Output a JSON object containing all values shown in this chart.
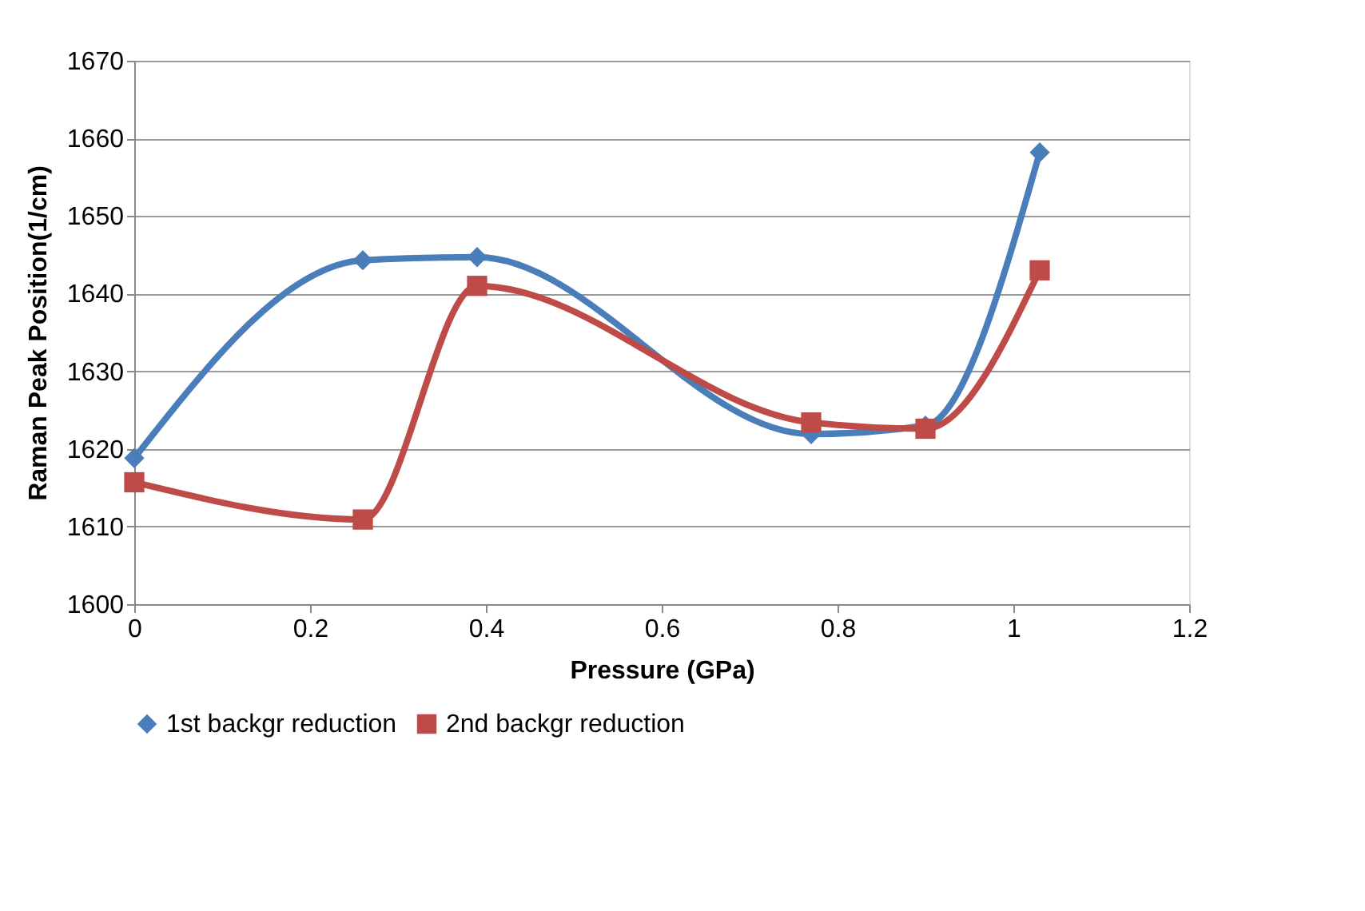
{
  "chart_data": {
    "type": "line",
    "xlabel": "Pressure (GPa)",
    "ylabel": "Raman Peak Position(1/cm)",
    "x": [
      0,
      0.26,
      0.39,
      0.77,
      0.9,
      1.03
    ],
    "series": [
      {
        "name": "1st backgr reduction",
        "color": "#4a7ebb",
        "marker": "diamond",
        "values": [
          1618.8,
          1644.3,
          1644.7,
          1621.9,
          1623,
          1658.2
        ]
      },
      {
        "name": "2nd backgr reduction",
        "color": "#be4b48",
        "marker": "square",
        "values": [
          1615.7,
          1610.9,
          1641.0,
          1623.4,
          1622.6,
          1643
        ]
      }
    ],
    "xlim": [
      0,
      1.2
    ],
    "xticks": [
      0,
      0.2,
      0.4,
      0.6,
      0.8,
      1,
      1.2
    ],
    "ylim": [
      1600,
      1670
    ],
    "yticks": [
      1600,
      1610,
      1620,
      1630,
      1640,
      1650,
      1660,
      1670
    ],
    "grid": "y",
    "legend": "bottom",
    "line_style": "solid"
  }
}
